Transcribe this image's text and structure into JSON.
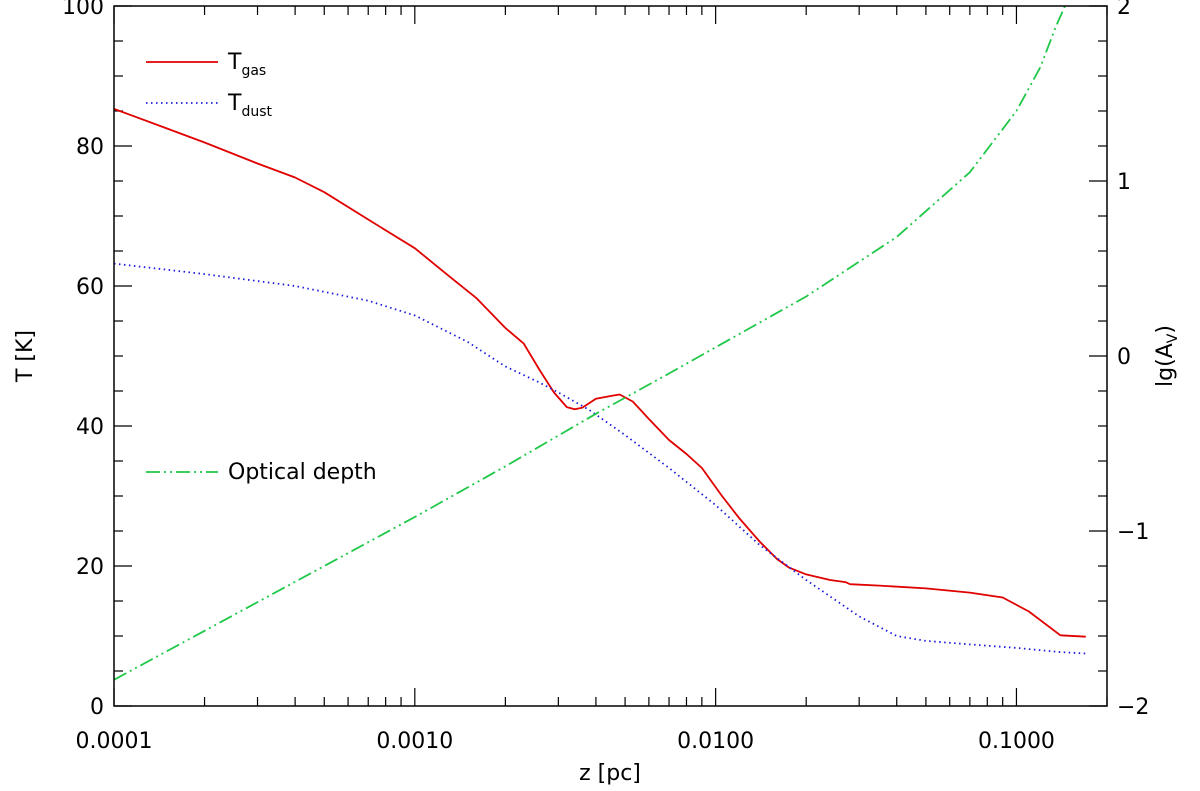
{
  "chart_data": {
    "type": "line",
    "xlabel": "z [pc]",
    "ylabel": "T [K]",
    "ylabel_right": "lg(A",
    "ylabel_right_sub": "V",
    "ylabel_right_close": ")",
    "x_scale": "log",
    "xlim": [
      0.0001,
      0.2
    ],
    "ylim": [
      0,
      100
    ],
    "ylim_right": [
      -2,
      2
    ],
    "grid": false,
    "x_ticks": [
      {
        "value": 0.0001,
        "label": "0.0001"
      },
      {
        "value": 0.001,
        "label": "0.0010"
      },
      {
        "value": 0.01,
        "label": "0.0100"
      },
      {
        "value": 0.1,
        "label": "0.1000"
      }
    ],
    "y_ticks": [
      {
        "value": 0,
        "label": "0"
      },
      {
        "value": 20,
        "label": "20"
      },
      {
        "value": 40,
        "label": "40"
      },
      {
        "value": 60,
        "label": "60"
      },
      {
        "value": 80,
        "label": "80"
      },
      {
        "value": 100,
        "label": "100"
      }
    ],
    "y_ticks_right": [
      {
        "value": -2,
        "label": "−2"
      },
      {
        "value": -1,
        "label": "−1"
      },
      {
        "value": 0,
        "label": "0"
      },
      {
        "value": 1,
        "label": "1"
      },
      {
        "value": 2,
        "label": "2"
      }
    ],
    "legend": [
      {
        "series": "T_gas",
        "text": "T",
        "sub": "gas"
      },
      {
        "series": "T_dust",
        "text": "T",
        "sub": "dust"
      },
      {
        "series": "optical_depth",
        "text": "Optical depth",
        "sub": ""
      }
    ],
    "series": [
      {
        "id": "T_gas",
        "axis": "left",
        "color": "#e00000",
        "dash": "solid",
        "x": [
          0.0001,
          0.00015,
          0.0002,
          0.0003,
          0.0004,
          0.0005,
          0.0007,
          0.001,
          0.0013,
          0.0016,
          0.002,
          0.0023,
          0.0026,
          0.0029,
          0.0032,
          0.0034,
          0.0036,
          0.004,
          0.0045,
          0.0048,
          0.0053,
          0.006,
          0.007,
          0.008,
          0.009,
          0.0105,
          0.012,
          0.014,
          0.016,
          0.0175,
          0.02,
          0.024,
          0.027,
          0.028,
          0.035,
          0.05,
          0.07,
          0.09,
          0.11,
          0.14,
          0.17
        ],
        "y": [
          85.3,
          82.5,
          80.5,
          77.5,
          75.5,
          73.4,
          69.5,
          65.4,
          61.4,
          58.3,
          54.0,
          51.8,
          48.0,
          44.8,
          42.7,
          42.4,
          42.6,
          43.9,
          44.3,
          44.5,
          43.5,
          41.0,
          38.0,
          36.0,
          34.0,
          30.0,
          26.8,
          23.5,
          21.0,
          19.8,
          18.8,
          18.0,
          17.7,
          17.4,
          17.2,
          16.8,
          16.2,
          15.5,
          13.5,
          10.1,
          9.9
        ]
      },
      {
        "id": "T_dust",
        "axis": "left",
        "color": "#1a1adc",
        "dash": "dotted",
        "x": [
          0.0001,
          0.0002,
          0.0004,
          0.0007,
          0.001,
          0.0015,
          0.002,
          0.0026,
          0.003,
          0.0038,
          0.005,
          0.007,
          0.01,
          0.014,
          0.02,
          0.03,
          0.04,
          0.05,
          0.07,
          0.1,
          0.14,
          0.17
        ],
        "y": [
          63.2,
          61.7,
          60.0,
          57.9,
          55.8,
          52.0,
          48.5,
          46.2,
          44.8,
          42.3,
          38.7,
          34.0,
          28.7,
          23.0,
          18.0,
          12.8,
          10.0,
          9.3,
          8.8,
          8.3,
          7.7,
          7.5
        ]
      },
      {
        "id": "optical_depth",
        "axis": "right",
        "color": "#1fc848",
        "dash": "dash-dot-dot",
        "x": [
          0.0001,
          0.0002,
          0.0005,
          0.001,
          0.002,
          0.004,
          0.007,
          0.01,
          0.02,
          0.04,
          0.07,
          0.1,
          0.12,
          0.135,
          0.145
        ],
        "y": [
          -1.85,
          -1.57,
          -1.2,
          -0.92,
          -0.63,
          -0.33,
          -0.1,
          0.05,
          0.34,
          0.68,
          1.05,
          1.4,
          1.65,
          1.88,
          2.0
        ]
      }
    ]
  }
}
